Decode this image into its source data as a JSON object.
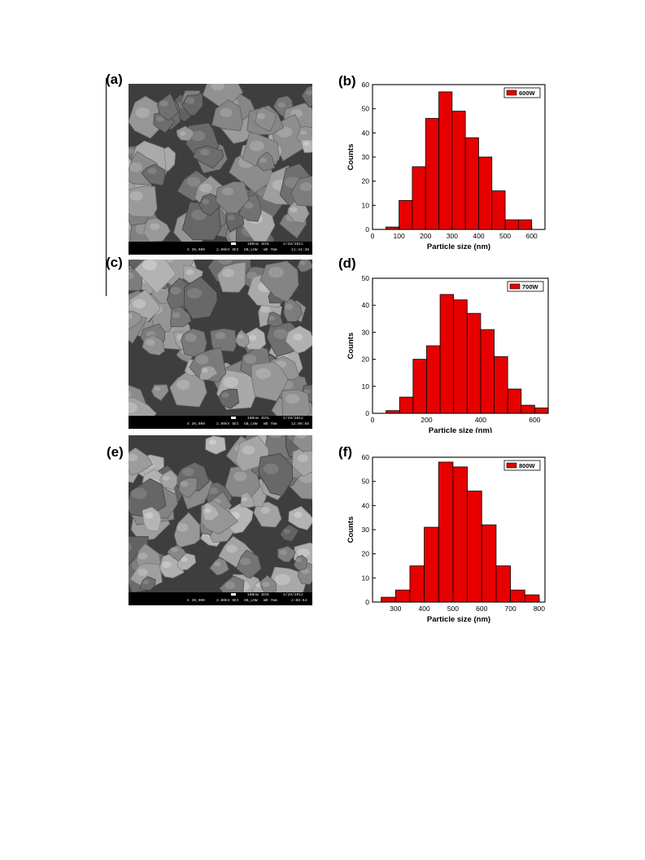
{
  "panels": {
    "a": "(a)",
    "b": "(b)",
    "c": "(c)",
    "d": "(d)",
    "e": "(e)",
    "f": "(f)"
  },
  "sem_images": [
    {
      "id": "a",
      "mag": "X 30,000",
      "kv": "2.00kV SEI",
      "mode": "GB_LOW",
      "wd": "WD 7mm",
      "scale": "100nm JEOL",
      "date": "2/29/2012",
      "time": "11:44:30"
    },
    {
      "id": "c",
      "mag": "X 30,000",
      "kv": "2.00kV SEI",
      "mode": "GB_LOW",
      "wd": "WD 7mm",
      "scale": "100nm JEOL",
      "date": "2/29/2012",
      "time": "12:06:58"
    },
    {
      "id": "e",
      "mag": "X 30,000",
      "kv": "2.00kV SEI",
      "mode": "GB_LOW",
      "wd": "WD 7mm",
      "scale": "100nm JEOL",
      "date": "2/29/2012",
      "time": "2:08:54"
    }
  ],
  "chart_data": [
    {
      "type": "bar",
      "panel": "(b)",
      "xlabel": "Particle size (nm)",
      "ylabel": "Counts",
      "legend": [
        "600W"
      ],
      "legend_position": "top-right",
      "bar_color": "#e60000",
      "xlim": [
        0,
        650
      ],
      "ylim": [
        0,
        60
      ],
      "xticks": [
        0,
        100,
        200,
        300,
        400,
        500,
        600
      ],
      "yticks": [
        0,
        10,
        20,
        30,
        40,
        50,
        60
      ],
      "bin_width": 50,
      "bin_centers": [
        75,
        125,
        175,
        225,
        275,
        325,
        375,
        425,
        475,
        525,
        575
      ],
      "values": [
        1,
        12,
        26,
        46,
        57,
        49,
        38,
        30,
        16,
        4,
        4
      ]
    },
    {
      "type": "bar",
      "panel": "(d)",
      "xlabel": "Particle size (nm)",
      "ylabel": "Counts",
      "legend": [
        "700W"
      ],
      "legend_position": "top-right",
      "bar_color": "#e60000",
      "xlim": [
        0,
        650
      ],
      "ylim": [
        0,
        50
      ],
      "xticks": [
        0,
        200,
        400,
        600
      ],
      "yticks": [
        0,
        10,
        20,
        30,
        40,
        50
      ],
      "bin_width": 50,
      "bin_centers": [
        75,
        125,
        175,
        225,
        275,
        325,
        375,
        425,
        475,
        525,
        575,
        625
      ],
      "values": [
        1,
        6,
        20,
        25,
        44,
        42,
        37,
        31,
        21,
        9,
        3,
        2
      ]
    },
    {
      "type": "bar",
      "panel": "(f)",
      "xlabel": "Particle size (nm)",
      "ylabel": "Counts",
      "legend": [
        "800W"
      ],
      "legend_position": "top-right",
      "bar_color": "#e60000",
      "xlim": [
        220,
        820
      ],
      "ylim": [
        0,
        60
      ],
      "xticks": [
        300,
        400,
        500,
        600,
        700,
        800
      ],
      "yticks": [
        0,
        10,
        20,
        30,
        40,
        50,
        60
      ],
      "bin_width": 50,
      "bin_centers": [
        275,
        325,
        375,
        425,
        475,
        525,
        575,
        625,
        675,
        725,
        775
      ],
      "values": [
        2,
        5,
        15,
        31,
        58,
        56,
        46,
        32,
        15,
        5,
        3
      ]
    }
  ]
}
